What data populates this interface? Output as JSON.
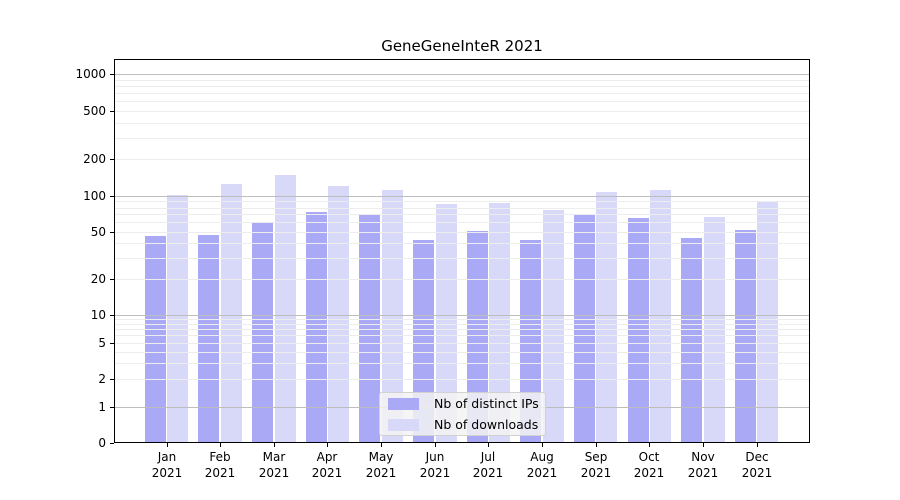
{
  "chart_data": {
    "type": "bar",
    "title": "GeneGeneInteR 2021",
    "categories": [
      "Jan 2021",
      "Feb 2021",
      "Mar 2021",
      "Apr 2021",
      "May 2021",
      "Jun 2021",
      "Jul 2021",
      "Aug 2021",
      "Sep 2021",
      "Oct 2021",
      "Nov 2021",
      "Dec 2021"
    ],
    "months": [
      "Jan",
      "Feb",
      "Mar",
      "Apr",
      "May",
      "Jun",
      "Jul",
      "Aug",
      "Sep",
      "Oct",
      "Nov",
      "Dec"
    ],
    "year": "2021",
    "series": [
      {
        "name": "Nb of distinct IPs",
        "color": "#a9a9f5",
        "values": [
          46,
          47,
          59,
          73,
          69,
          43,
          51,
          43,
          69,
          65,
          44,
          52
        ]
      },
      {
        "name": "Nb of downloads",
        "color": "#d8d8f9",
        "values": [
          102,
          125,
          150,
          120,
          112,
          85,
          88,
          77,
          108,
          113,
          66,
          89
        ]
      }
    ],
    "yticks": [
      0,
      1,
      2,
      5,
      10,
      20,
      50,
      100,
      200,
      500,
      1000
    ],
    "yscale": "log-like (0,1 linear segment, log decades above 1)",
    "ylim": [
      0,
      1300
    ],
    "xlabel": "",
    "ylabel": "",
    "grid": true,
    "gridline_major_color": "#bdbdbd",
    "gridline_minor_color": "#ededed",
    "legend_position": "lower-center",
    "background_color": "#ffffff"
  }
}
